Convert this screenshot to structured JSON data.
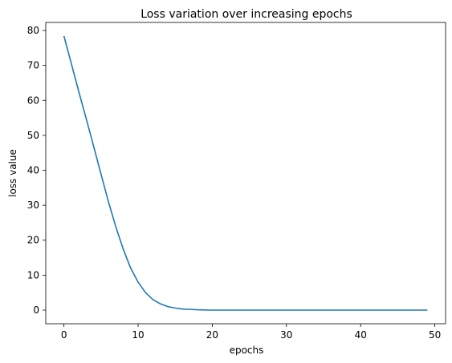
{
  "chart_data": {
    "type": "line",
    "title": "Loss variation over increasing epochs",
    "xlabel": "epochs",
    "ylabel": "loss value",
    "xlim": [
      -2.45,
      51.45
    ],
    "ylim": [
      -3.9,
      82.3
    ],
    "xticks": [
      0,
      10,
      20,
      30,
      40,
      50
    ],
    "yticks": [
      0,
      10,
      20,
      30,
      40,
      50,
      60,
      70,
      80
    ],
    "grid": false,
    "series": [
      {
        "color": "#1f77b4",
        "x": [
          0,
          1,
          2,
          3,
          4,
          5,
          6,
          7,
          8,
          9,
          10,
          11,
          12,
          13,
          14,
          15,
          16,
          17,
          18,
          19,
          20,
          21,
          22,
          23,
          24,
          25,
          26,
          27,
          28,
          29,
          30,
          31,
          32,
          33,
          34,
          35,
          36,
          37,
          38,
          39,
          40,
          41,
          42,
          43,
          44,
          45,
          46,
          47,
          48,
          49
        ],
        "y": [
          78.4,
          70.5,
          62.5,
          54.8,
          46.9,
          38.9,
          31.0,
          23.8,
          17.4,
          12.0,
          8.0,
          5.0,
          3.0,
          1.8,
          1.0,
          0.6,
          0.3,
          0.2,
          0.1,
          0.05,
          0,
          0,
          0,
          0,
          0,
          0,
          0,
          0,
          0,
          0,
          0,
          0,
          0,
          0,
          0,
          0,
          0,
          0,
          0,
          0,
          0,
          0,
          0,
          0,
          0,
          0,
          0,
          0,
          0,
          0
        ]
      }
    ]
  }
}
